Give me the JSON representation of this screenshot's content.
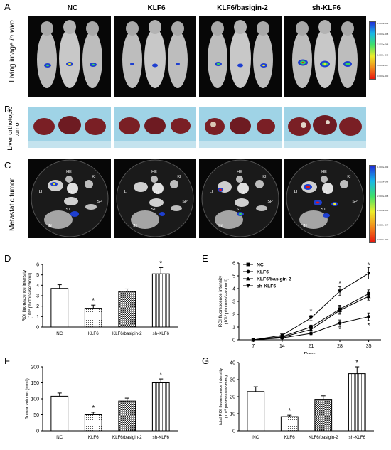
{
  "panels": {
    "A": "A",
    "B": "B",
    "C": "C",
    "D": "D",
    "E": "E",
    "F": "F",
    "G": "G"
  },
  "groups": [
    "NC",
    "KLF6",
    "KLF6/basigin-2",
    "sh-KLF6"
  ],
  "row_labels": {
    "living_image_prefix": "Living image ",
    "living_image_italic": "in vivo",
    "liver_line1": "Liver orthotopic",
    "liver_line2": "tumor",
    "metastatic": "Metastatic tumor"
  },
  "organ_labels": [
    "HE",
    "KI",
    "LI",
    "LU",
    "ST",
    "SP",
    "IN"
  ],
  "colorbar_ticks": [
    "1.0000e+009",
    "3.0000e+008",
    "2.0000e+008",
    "1.0000e+008",
    "5.0000e+007",
    "0.0000e+000"
  ],
  "colors": {
    "background": "#ffffff",
    "photo_bg": "#070707",
    "tray_blue": "#9fd3e6",
    "tumor_red": "#7a1f25"
  },
  "chart_data": [
    {
      "panel": "D",
      "type": "bar",
      "categories": [
        "NC",
        "KLF6",
        "KLF6/basigin-2",
        "sh-KLF6"
      ],
      "values": [
        3.7,
        1.8,
        3.4,
        5.1
      ],
      "errors": [
        0.35,
        0.3,
        0.25,
        0.6
      ],
      "significance": [
        "",
        "*",
        "",
        "*"
      ],
      "ylabel_line1": "ROI fluorescence intensity",
      "ylabel_line2": "(10¹⁰ photons/sec/mm²)",
      "ylim": [
        0,
        6
      ],
      "yticks": [
        "0",
        "1",
        "2",
        "3",
        "4",
        "5",
        "6"
      ],
      "fills": [
        "open",
        "dots",
        "checker",
        "vstripe"
      ]
    },
    {
      "panel": "E",
      "type": "line",
      "x": [
        7,
        14,
        21,
        28,
        35
      ],
      "xticks": [
        "7",
        "14",
        "21",
        "28",
        "35"
      ],
      "xlabel": "Days",
      "ylabel_line1": "ROI fluorescence intensity",
      "ylabel_line2": "(10¹⁰ photons/sec/mm²)",
      "ylim": [
        0,
        6
      ],
      "yticks": [
        "0",
        "1",
        "2",
        "3",
        "4",
        "5",
        "6"
      ],
      "series": [
        {
          "name": "NC",
          "marker": "square",
          "values": [
            0,
            0.25,
            1.0,
            2.4,
            3.6
          ],
          "errors": [
            0.05,
            0.08,
            0.15,
            0.3,
            0.3
          ]
        },
        {
          "name": "KLF6",
          "marker": "circle",
          "values": [
            0,
            0.15,
            0.5,
            1.3,
            1.8
          ],
          "errors": [
            0.05,
            0.06,
            0.1,
            0.25,
            0.3
          ]
        },
        {
          "name": "KLF6/basigin-2",
          "marker": "triangle",
          "values": [
            0,
            0.2,
            0.8,
            2.3,
            3.4
          ],
          "errors": [
            0.05,
            0.07,
            0.12,
            0.3,
            0.3
          ]
        },
        {
          "name": "sh-KLF6",
          "marker": "tri-down",
          "values": [
            0,
            0.35,
            1.7,
            3.8,
            5.2
          ],
          "errors": [
            0.06,
            0.1,
            0.2,
            0.35,
            0.45
          ]
        }
      ],
      "significance_marks": [
        {
          "x": 21,
          "y": 2.2,
          "label": "*"
        },
        {
          "x": 28,
          "y": 4.4,
          "label": "*"
        },
        {
          "x": 28,
          "y": 0.8,
          "label": "*"
        },
        {
          "x": 35,
          "y": 5.8,
          "label": "*"
        },
        {
          "x": 35,
          "y": 1.1,
          "label": "*"
        }
      ]
    },
    {
      "panel": "F",
      "type": "bar",
      "categories": [
        "NC",
        "KLF6",
        "KLF6/basigin-2",
        "sh-KLF6"
      ],
      "values": [
        108,
        50,
        93,
        150
      ],
      "errors": [
        10,
        8,
        9,
        12
      ],
      "significance": [
        "",
        "*",
        "",
        "*"
      ],
      "ylabel": "Tumor volumn  (mm³)",
      "ylim": [
        0,
        200
      ],
      "yticks": [
        "0",
        "50",
        "100",
        "150",
        "200"
      ],
      "fills": [
        "open",
        "dots",
        "checker",
        "vstripe"
      ]
    },
    {
      "panel": "G",
      "type": "bar",
      "categories": [
        "NC",
        "KLF6",
        "KLF6/basigin-2",
        "sh-KLF6"
      ],
      "values": [
        23,
        8.3,
        18.5,
        33.5
      ],
      "errors": [
        2.8,
        0.8,
        2.0,
        4.0
      ],
      "significance": [
        "",
        "*",
        "",
        "*"
      ],
      "ylabel_line1": "total ROI fluorescence intensity",
      "ylabel_line2": "(10¹⁰ photons/sec/mm²)",
      "ylim": [
        0,
        40
      ],
      "yticks": [
        "0",
        "10",
        "20",
        "30",
        "40"
      ],
      "fills": [
        "open",
        "dots",
        "checker",
        "vstripe"
      ]
    }
  ]
}
